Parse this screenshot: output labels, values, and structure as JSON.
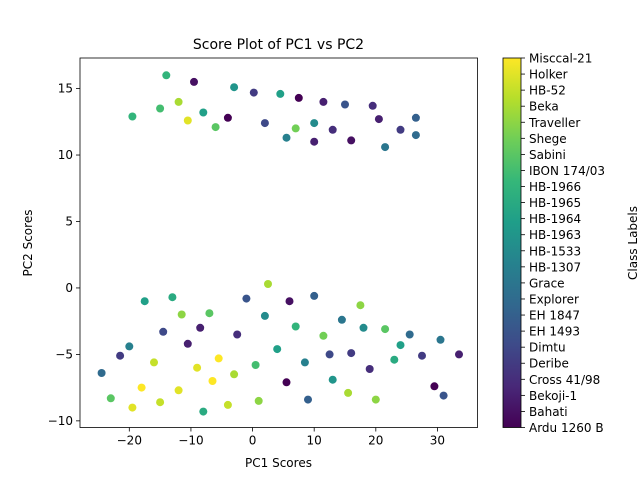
{
  "chart_data": {
    "type": "scatter",
    "title": "Score Plot of PC1 vs PC2",
    "xlabel": "PC1 Scores",
    "ylabel": "PC2 Scores",
    "xlim": [
      -28,
      36.5
    ],
    "ylim": [
      -10.5,
      17.3
    ],
    "xticks": [
      -20,
      -10,
      0,
      10,
      20,
      30
    ],
    "yticks": [
      -10,
      -5,
      0,
      5,
      10,
      15
    ],
    "grid": false,
    "colorbar": {
      "label": "Class Labels",
      "colormap": "viridis",
      "position": "right",
      "classes": [
        "Ardu 1260 B",
        "Bahati",
        "Bekoji-1",
        "Cross 41/98",
        "Deribe",
        "Dimtu",
        "EH 1493",
        "EH 1847",
        "Explorer",
        "Grace",
        "HB-1307",
        "HB-1533",
        "HB-1963",
        "HB-1964",
        "HB-1965",
        "HB-1966",
        "IBON 174/03",
        "Sabini",
        "Shege",
        "Traveller",
        "Beka",
        "HB-52",
        "Holker",
        "Misccal-21"
      ]
    },
    "points": [
      {
        "x": -14.0,
        "y": 16.0,
        "c": 15
      },
      {
        "x": -9.5,
        "y": 15.5,
        "c": 1
      },
      {
        "x": -3.0,
        "y": 15.1,
        "c": 12
      },
      {
        "x": 0.2,
        "y": 14.7,
        "c": 4
      },
      {
        "x": 4.5,
        "y": 14.6,
        "c": 13
      },
      {
        "x": 7.5,
        "y": 14.3,
        "c": 0
      },
      {
        "x": 11.5,
        "y": 14.0,
        "c": 2
      },
      {
        "x": 15.0,
        "y": 13.8,
        "c": 6
      },
      {
        "x": 19.5,
        "y": 13.7,
        "c": 3
      },
      {
        "x": 26.5,
        "y": 12.8,
        "c": 7
      },
      {
        "x": 20.5,
        "y": 12.7,
        "c": 2
      },
      {
        "x": -19.5,
        "y": 12.9,
        "c": 15
      },
      {
        "x": -12.0,
        "y": 14.0,
        "c": 20
      },
      {
        "x": -8.0,
        "y": 13.2,
        "c": 13
      },
      {
        "x": -6.0,
        "y": 12.1,
        "c": 17
      },
      {
        "x": -4.0,
        "y": 12.8,
        "c": 0
      },
      {
        "x": 2.0,
        "y": 12.4,
        "c": 5
      },
      {
        "x": 7.0,
        "y": 12.0,
        "c": 18
      },
      {
        "x": 10.0,
        "y": 12.4,
        "c": 11
      },
      {
        "x": 13.0,
        "y": 11.9,
        "c": 3
      },
      {
        "x": 10.0,
        "y": 11.0,
        "c": 2
      },
      {
        "x": 16.0,
        "y": 11.1,
        "c": 1
      },
      {
        "x": 21.5,
        "y": 10.6,
        "c": 9
      },
      {
        "x": 24.0,
        "y": 11.9,
        "c": 4
      },
      {
        "x": 26.5,
        "y": 11.5,
        "c": 8
      },
      {
        "x": 5.5,
        "y": 11.3,
        "c": 10
      },
      {
        "x": -10.5,
        "y": 12.6,
        "c": 22
      },
      {
        "x": -15.0,
        "y": 13.5,
        "c": 16
      },
      {
        "x": -24.5,
        "y": -6.4,
        "c": 8
      },
      {
        "x": -23.0,
        "y": -8.3,
        "c": 17
      },
      {
        "x": -21.5,
        "y": -5.1,
        "c": 4
      },
      {
        "x": -19.5,
        "y": -9.0,
        "c": 22
      },
      {
        "x": -18.0,
        "y": -7.5,
        "c": 23
      },
      {
        "x": -17.5,
        "y": -1.0,
        "c": 13
      },
      {
        "x": -16.0,
        "y": -5.6,
        "c": 21
      },
      {
        "x": -14.5,
        "y": -3.3,
        "c": 5
      },
      {
        "x": -13.0,
        "y": -0.7,
        "c": 14
      },
      {
        "x": -11.5,
        "y": -2.0,
        "c": 19
      },
      {
        "x": -10.5,
        "y": -4.2,
        "c": 2
      },
      {
        "x": -9.0,
        "y": -6.0,
        "c": 22
      },
      {
        "x": -8.0,
        "y": -9.3,
        "c": 14
      },
      {
        "x": -7.0,
        "y": -1.9,
        "c": 17
      },
      {
        "x": -5.5,
        "y": -5.3,
        "c": 23
      },
      {
        "x": -4.0,
        "y": -8.8,
        "c": 21
      },
      {
        "x": -2.5,
        "y": -3.5,
        "c": 3
      },
      {
        "x": -1.0,
        "y": -0.8,
        "c": 6
      },
      {
        "x": 0.5,
        "y": -5.8,
        "c": 16
      },
      {
        "x": 2.0,
        "y": -2.1,
        "c": 11
      },
      {
        "x": 2.5,
        "y": 0.3,
        "c": 20
      },
      {
        "x": 4.0,
        "y": -4.6,
        "c": 13
      },
      {
        "x": 5.5,
        "y": -7.1,
        "c": 0
      },
      {
        "x": 7.0,
        "y": -2.9,
        "c": 15
      },
      {
        "x": 8.5,
        "y": -5.6,
        "c": 10
      },
      {
        "x": 10.0,
        "y": -0.6,
        "c": 7
      },
      {
        "x": 11.5,
        "y": -3.6,
        "c": 18
      },
      {
        "x": 13.0,
        "y": -6.9,
        "c": 12
      },
      {
        "x": 14.5,
        "y": -2.4,
        "c": 9
      },
      {
        "x": 16.0,
        "y": -4.9,
        "c": 4
      },
      {
        "x": 17.5,
        "y": -1.3,
        "c": 19
      },
      {
        "x": 19.0,
        "y": -6.1,
        "c": 3
      },
      {
        "x": 20.0,
        "y": -8.4,
        "c": 19
      },
      {
        "x": 21.5,
        "y": -3.1,
        "c": 17
      },
      {
        "x": 23.0,
        "y": -5.4,
        "c": 14
      },
      {
        "x": 25.5,
        "y": -3.5,
        "c": 8
      },
      {
        "x": 27.5,
        "y": -5.1,
        "c": 4
      },
      {
        "x": 29.5,
        "y": -7.4,
        "c": 0
      },
      {
        "x": 30.5,
        "y": -3.9,
        "c": 9
      },
      {
        "x": 31.0,
        "y": -8.1,
        "c": 6
      },
      {
        "x": 33.5,
        "y": -5.0,
        "c": 2
      },
      {
        "x": -12.0,
        "y": -7.7,
        "c": 22
      },
      {
        "x": -6.5,
        "y": -7.0,
        "c": 23
      },
      {
        "x": -15.0,
        "y": -8.6,
        "c": 21
      },
      {
        "x": -3.0,
        "y": -6.5,
        "c": 20
      },
      {
        "x": 1.0,
        "y": -8.5,
        "c": 19
      },
      {
        "x": -20.0,
        "y": -4.4,
        "c": 10
      },
      {
        "x": 6.0,
        "y": -1.0,
        "c": 1
      },
      {
        "x": 12.5,
        "y": -5.0,
        "c": 5
      },
      {
        "x": 18.0,
        "y": -3.0,
        "c": 11
      },
      {
        "x": 24.0,
        "y": -4.3,
        "c": 13
      },
      {
        "x": -8.5,
        "y": -3.0,
        "c": 2
      },
      {
        "x": 9.0,
        "y": -8.4,
        "c": 7
      },
      {
        "x": 15.5,
        "y": -7.9,
        "c": 20
      }
    ]
  }
}
